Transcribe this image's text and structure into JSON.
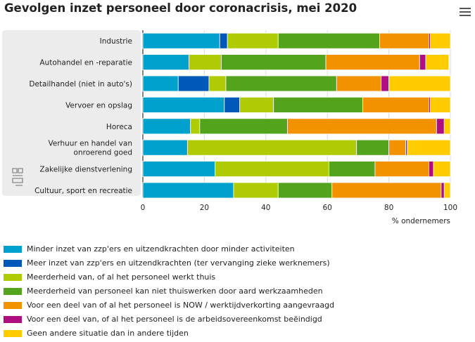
{
  "title": "Gevolgen inzet personeel door coronacrisis, mei 2020",
  "menu_icon": "hamburger-menu-icon",
  "logo_icon": "cbs-logo-icon",
  "chart_data": {
    "type": "bar",
    "orientation": "horizontal",
    "stacked": true,
    "title": "Gevolgen inzet personeel door coronacrisis, mei 2020",
    "xlabel": "% ondernemers",
    "ylabel": "",
    "xlim": [
      0,
      100
    ],
    "xticks": [
      0,
      20,
      40,
      60,
      80,
      100
    ],
    "grid": true,
    "legend_position": "bottom",
    "categories": [
      "Industrie",
      "Autohandel en -reparatie",
      "Detailhandel (niet in auto's)",
      "Vervoer en opslag",
      "Horeca",
      "Verhuur en handel van onroerend goed",
      "Zakelijke dienstverlening",
      "Cultuur, sport en recreatie"
    ],
    "category_lines": [
      [
        "Industrie"
      ],
      [
        "Autohandel en -reparatie"
      ],
      [
        "Detailhandel (niet in auto's)"
      ],
      [
        "Vervoer en opslag"
      ],
      [
        "Horeca"
      ],
      [
        "Verhuur en handel van",
        "onroerend goed"
      ],
      [
        "Zakelijke dienstverlening"
      ],
      [
        "Cultuur, sport en recreatie"
      ]
    ],
    "series": [
      {
        "name": "Minder inzet van zzp'ers en uitzendkrachten door minder activiteiten",
        "color": "#00a1cd",
        "values": [
          25,
          15,
          11.5,
          26.5,
          15.5,
          14.5,
          23.5,
          29.5
        ]
      },
      {
        "name": "Meer inzet van zzp'ers en uitzendkrachten (ter vervanging zieke werknemers)",
        "color": "#0058b8",
        "values": [
          2.5,
          0,
          10,
          5,
          0,
          0,
          0,
          0
        ]
      },
      {
        "name": "Meerderheid van, of al het personeel werkt thuis",
        "color": "#afcb05",
        "values": [
          16.5,
          10.5,
          5.5,
          11,
          3,
          55,
          37,
          14.5
        ]
      },
      {
        "name": "Meerderheid van personeel kan niet thuiswerken door aard werkzaamheden",
        "color": "#53a31d",
        "values": [
          33,
          34,
          36,
          29,
          28.5,
          10.5,
          15,
          17.5
        ]
      },
      {
        "name": "Voor een deel van of al het personeel is NOW / werktijdverkorting aangevraagd",
        "color": "#f39200",
        "values": [
          16,
          30.5,
          14.5,
          21.5,
          48.5,
          5.5,
          17.5,
          35.5
        ]
      },
      {
        "name": "Voor een deel van, of al het personeel is de arbeidsovereenkomst beëindigd",
        "color": "#af0e80",
        "values": [
          0.5,
          2,
          2.5,
          0.5,
          2.5,
          0.5,
          1.5,
          1
        ]
      },
      {
        "name": "Geen andere situatie dan in andere tijden",
        "color": "#ffcc00",
        "values": [
          6.5,
          7.5,
          20,
          6.5,
          2,
          14,
          5.5,
          2
        ]
      }
    ]
  }
}
